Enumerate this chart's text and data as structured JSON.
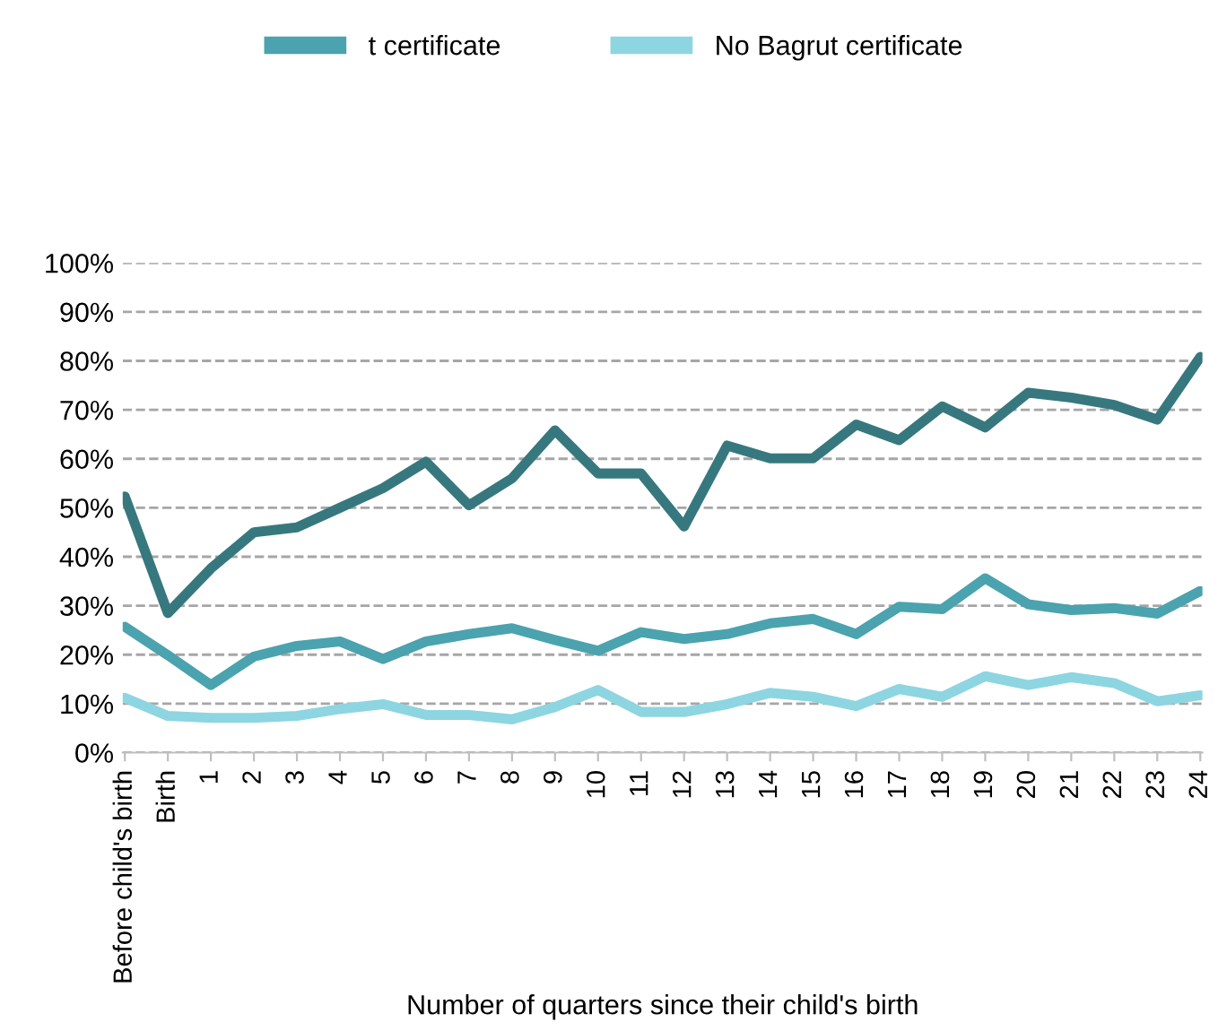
{
  "chart_data": {
    "type": "line",
    "xlabel": "Number of quarters since their child's birth",
    "categories": [
      "Before child's birth",
      "Birth",
      "1",
      "2",
      "3",
      "4",
      "5",
      "6",
      "7",
      "8",
      "9",
      "10",
      "11",
      "12",
      "13",
      "14",
      "15",
      "16",
      "17",
      "18",
      "19",
      "20",
      "21",
      "22",
      "23",
      "24"
    ],
    "series": [
      {
        "color": "#37787f",
        "values": [
          52.3,
          28.5,
          37.6,
          45,
          46,
          50,
          54,
          59.4,
          50.5,
          56,
          65.8,
          57,
          57,
          46.2,
          62.7,
          60.1,
          60.1,
          67,
          63.8,
          70.7,
          66.4,
          73.5,
          72.5,
          71,
          68,
          80.8
        ]
      },
      {
        "name": "t certificate",
        "color": "#4aa3ae",
        "values": [
          25.7,
          19.9,
          13.8,
          19.6,
          21.8,
          22.7,
          19.1,
          22.7,
          24.2,
          25.4,
          23,
          20.8,
          24.6,
          23.2,
          24.2,
          26.4,
          27.3,
          24.2,
          29.8,
          29.3,
          35.6,
          30.3,
          29.1,
          29.5,
          28.4,
          33
        ]
      },
      {
        "name": "No Bagrut certificate",
        "color": "#8dd5e1",
        "values": [
          11.2,
          7.5,
          7.1,
          7.1,
          7.5,
          8.9,
          9.9,
          7.7,
          7.7,
          6.8,
          9.3,
          12.8,
          8.3,
          8.3,
          9.9,
          12.2,
          11.4,
          9.5,
          13,
          11.4,
          15.6,
          13.8,
          15.4,
          14.2,
          10.5,
          11.7
        ]
      }
    ],
    "ylim": [
      0,
      100
    ],
    "yticks": [
      {
        "value": 0,
        "label": "0%"
      },
      {
        "value": 10,
        "label": "10%"
      },
      {
        "value": 20,
        "label": "20%"
      },
      {
        "value": 30,
        "label": "30%"
      },
      {
        "value": 40,
        "label": "40%"
      },
      {
        "value": 50,
        "label": "50%"
      },
      {
        "value": 60,
        "label": "60%"
      },
      {
        "value": 70,
        "label": "70%"
      },
      {
        "value": 80,
        "label": "80%"
      },
      {
        "value": 90,
        "label": "90%"
      },
      {
        "value": 100,
        "label": "100%"
      }
    ],
    "grid": "y",
    "legend": "top",
    "line_style": "solid"
  }
}
